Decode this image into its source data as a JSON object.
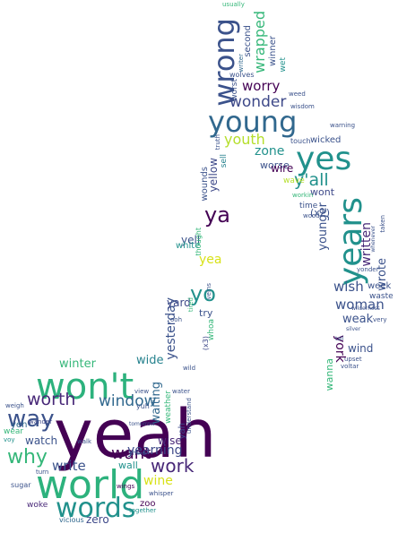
{
  "words": [
    {
      "text": "yeah",
      "color": "#440154"
    },
    {
      "text": "world",
      "color": "#2db27d"
    },
    {
      "text": "won't",
      "color": "#2db27d"
    },
    {
      "text": "words",
      "color": "#21918c"
    },
    {
      "text": "way",
      "color": "#3b528b"
    },
    {
      "text": "why",
      "color": "#35b779"
    },
    {
      "text": "worth",
      "color": "#482878"
    },
    {
      "text": "window",
      "color": "#31688e"
    },
    {
      "text": "winter",
      "color": "#35b779"
    },
    {
      "text": "want",
      "color": "#440154"
    },
    {
      "text": "write",
      "color": "#3b528b"
    },
    {
      "text": "work",
      "color": "#482878"
    },
    {
      "text": "yearning",
      "color": "#3e4989"
    },
    {
      "text": "wine",
      "color": "#d8e219"
    },
    {
      "text": "wall",
      "color": "#21918c"
    },
    {
      "text": "watch",
      "color": "#3b528b"
    },
    {
      "text": "wide",
      "color": "#26828e"
    },
    {
      "text": "zero",
      "color": "#3e4989"
    },
    {
      "text": "zoo",
      "color": "#440154"
    },
    {
      "text": "yeh",
      "color": "#31688e"
    },
    {
      "text": "wear",
      "color": "#35b779"
    },
    {
      "text": "weigh",
      "color": "#3b528b"
    },
    {
      "text": "voy",
      "color": "#21918c"
    },
    {
      "text": "wander",
      "color": "#3e4989"
    },
    {
      "text": "wings",
      "color": "#440154"
    },
    {
      "text": "sugar",
      "color": "#3b528b"
    },
    {
      "text": "woke",
      "color": "#482878"
    },
    {
      "text": "vicious",
      "color": "#31688e"
    },
    {
      "text": "together",
      "color": "#21918c"
    },
    {
      "text": "turn",
      "color": "#3b528b"
    },
    {
      "text": "wise",
      "color": "#482878"
    },
    {
      "text": "yah",
      "color": "#3e4989"
    },
    {
      "text": "waiting",
      "color": "#31688e"
    },
    {
      "text": "weather",
      "color": "#35b779"
    },
    {
      "text": "yesterday",
      "color": "#3b528b"
    },
    {
      "text": "yard",
      "color": "#3e4989"
    },
    {
      "text": "yell",
      "color": "#3b528b"
    },
    {
      "text": "white",
      "color": "#21918c"
    },
    {
      "text": "yea",
      "color": "#d8e219"
    },
    {
      "text": "yo",
      "color": "#21918c"
    },
    {
      "text": "ya",
      "color": "#440154"
    },
    {
      "text": "try",
      "color": "#3b528b"
    },
    {
      "text": "whoa",
      "color": "#35b779"
    },
    {
      "text": "(x3)",
      "color": "#3e4989"
    },
    {
      "text": "thought",
      "color": "#35b779"
    },
    {
      "text": "tired",
      "color": "#35b779"
    },
    {
      "text": "wounds",
      "color": "#3b528b"
    },
    {
      "text": "yellow",
      "color": "#3e4989"
    },
    {
      "text": "sell",
      "color": "#26828e"
    },
    {
      "text": "youth",
      "color": "#b5de2b"
    },
    {
      "text": "young",
      "color": "#31688e"
    },
    {
      "text": "wrong",
      "color": "#3b528b"
    },
    {
      "text": "wonder",
      "color": "#3e4989"
    },
    {
      "text": "worry",
      "color": "#440154"
    },
    {
      "text": "worst",
      "color": "#3b528b"
    },
    {
      "text": "wolves",
      "color": "#3b528b"
    },
    {
      "text": "second",
      "color": "#3b528b"
    },
    {
      "text": "wrapped",
      "color": "#35b779"
    },
    {
      "text": "winner",
      "color": "#3b528b"
    },
    {
      "text": "wet",
      "color": "#21918c"
    },
    {
      "text": "writer",
      "color": "#31688e"
    },
    {
      "text": "usually",
      "color": "#35b779"
    },
    {
      "text": "yes",
      "color": "#21918c"
    },
    {
      "text": "zone",
      "color": "#21918c"
    },
    {
      "text": "y'all",
      "color": "#21918c"
    },
    {
      "text": "worse",
      "color": "#3b528b"
    },
    {
      "text": "wire",
      "color": "#440154"
    },
    {
      "text": "wicked",
      "color": "#3b528b"
    },
    {
      "text": "wave",
      "color": "#b5de2b"
    },
    {
      "text": "wont",
      "color": "#3e4989"
    },
    {
      "text": "warning",
      "color": "#3b528b"
    },
    {
      "text": "touch",
      "color": "#3b528b"
    },
    {
      "text": "(x2)",
      "color": "#3b528b"
    },
    {
      "text": "years",
      "color": "#21918c"
    },
    {
      "text": "written",
      "color": "#482878"
    },
    {
      "text": "younger",
      "color": "#3b528b"
    },
    {
      "text": "wrote",
      "color": "#3b528b"
    },
    {
      "text": "wish",
      "color": "#3b528b"
    },
    {
      "text": "woman",
      "color": "#3b528b"
    },
    {
      "text": "weak",
      "color": "#3b528b"
    },
    {
      "text": "wind",
      "color": "#3b528b"
    },
    {
      "text": "waste",
      "color": "#3b528b"
    },
    {
      "text": "week",
      "color": "#3b528b"
    },
    {
      "text": "york",
      "color": "#440154"
    },
    {
      "text": "wanna",
      "color": "#35b779"
    },
    {
      "text": "time",
      "color": "#3b528b"
    },
    {
      "text": "wood",
      "color": "#3b528b"
    },
    {
      "text": "taken",
      "color": "#3b528b"
    },
    {
      "text": "veins",
      "color": "#3b528b"
    },
    {
      "text": "ooh",
      "color": "#3b528b"
    },
    {
      "text": "workin",
      "color": "#35b779"
    },
    {
      "text": "upset",
      "color": "#3b528b"
    },
    {
      "text": "voltar",
      "color": "#3b528b"
    },
    {
      "text": "view",
      "color": "#3b528b"
    },
    {
      "text": "water",
      "color": "#3b528b"
    },
    {
      "text": "shine",
      "color": "#3b528b"
    },
    {
      "text": "walk",
      "color": "#3b528b"
    },
    {
      "text": "tomorrow",
      "color": "#3b528b"
    },
    {
      "text": "wild",
      "color": "#3b528b"
    },
    {
      "text": "yuh",
      "color": "#3b528b"
    },
    {
      "text": "understand",
      "color": "#3b528b"
    },
    {
      "text": "whisper",
      "color": "#3b528b"
    },
    {
      "text": "wilderness",
      "color": "#3b528b"
    },
    {
      "text": "truth",
      "color": "#3b528b"
    },
    {
      "text": "wisdom",
      "color": "#3b528b"
    },
    {
      "text": "very",
      "color": "#3b528b"
    },
    {
      "text": "yonder",
      "color": "#3b528b"
    },
    {
      "text": "whenever",
      "color": "#3b528b"
    },
    {
      "text": "silver",
      "color": "#3b528b"
    },
    {
      "text": "tell",
      "color": "#3b528b"
    },
    {
      "text": "weed",
      "color": "#3b528b"
    }
  ]
}
